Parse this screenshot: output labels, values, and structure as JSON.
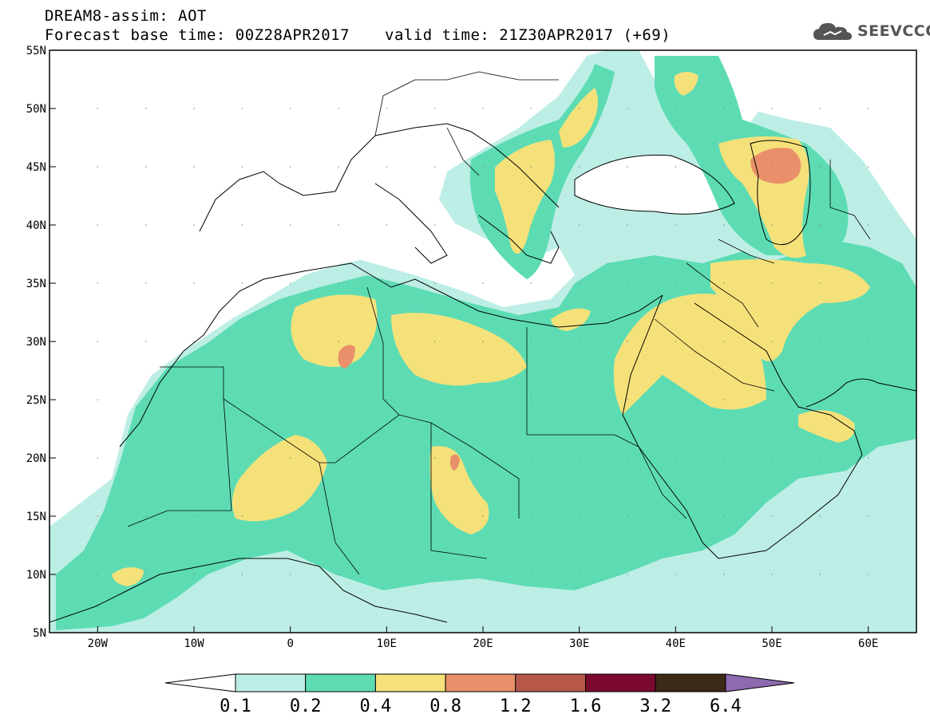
{
  "header": {
    "title": "DREAM8-assim: AOT",
    "base_time": "Forecast base time: 00Z28APR2017",
    "valid_time": "valid time: 21Z30APR2017 (+69)",
    "logo_text": "SEEVCCC"
  },
  "map": {
    "lat_labels": [
      "55N",
      "50N",
      "45N",
      "40N",
      "35N",
      "30N",
      "25N",
      "20N",
      "15N",
      "10N",
      "5N"
    ],
    "lon_labels": [
      "20W",
      "10W",
      "0",
      "10E",
      "20E",
      "30E",
      "40E",
      "50E",
      "60E"
    ],
    "extent": {
      "lon_min": -25,
      "lon_max": 65,
      "lat_min": 5,
      "lat_max": 55
    }
  },
  "legend": {
    "ticks": [
      "0.1",
      "0.2",
      "0.4",
      "0.8",
      "1.2",
      "1.6",
      "3.2",
      "6.4"
    ],
    "colors": [
      "#ffffff",
      "#bdeee6",
      "#5ddcb4",
      "#f5e17a",
      "#e9906a",
      "#b7574a",
      "#7c0a2e",
      "#3b2a16",
      "#8e6ab0"
    ]
  },
  "colors": {
    "aot_0_1": "#bdeee6",
    "aot_0_2": "#5ddcb4",
    "aot_0_4": "#f5e17a",
    "aot_0_8": "#e9906a",
    "border": "#000000"
  }
}
